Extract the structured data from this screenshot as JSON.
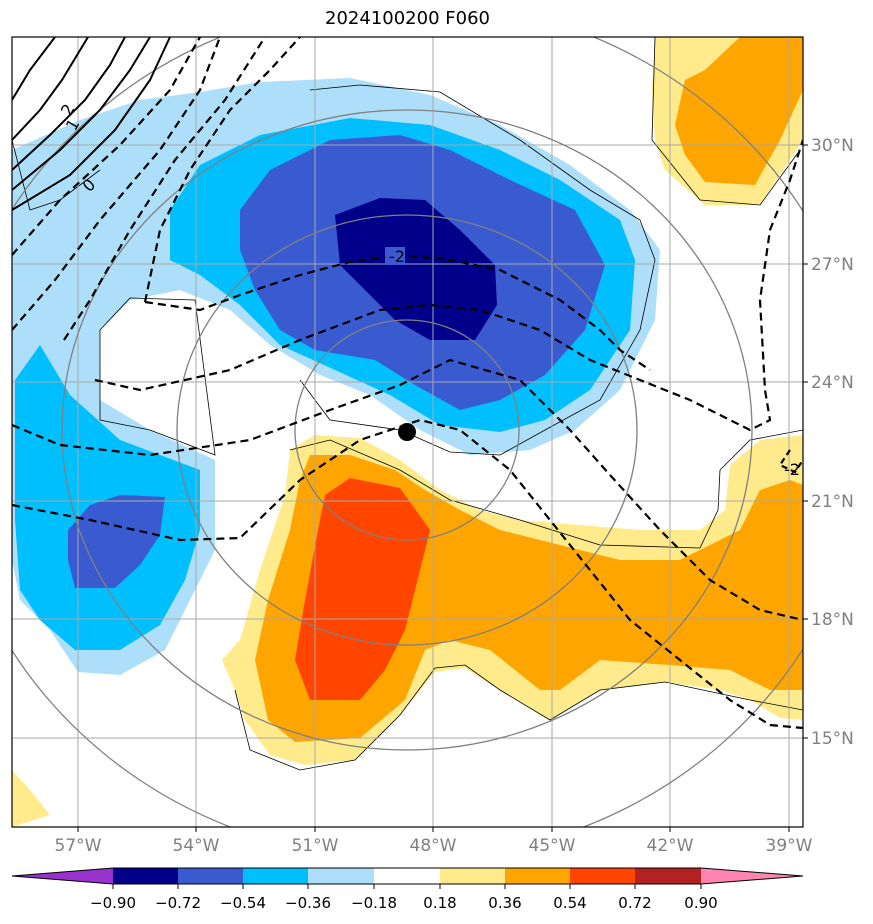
{
  "title": "2024100200 F060",
  "colors": {
    "neg090": "#9932CC",
    "neg072": "#00008B",
    "neg054": "#3A5BD0",
    "neg036": "#00BFFF",
    "neg018": "#ADDFFA",
    "white": "#FFFFFF",
    "pos018": "#FFEA8C",
    "pos036": "#FFA500",
    "pos054": "#FF4500",
    "pos072": "#B22222",
    "pos090": "#FF85B0"
  },
  "lon_labels": [
    "57°W",
    "54°W",
    "51°W",
    "48°W",
    "45°W",
    "42°W",
    "39°W"
  ],
  "lat_labels": [
    "30°N",
    "27°N",
    "24°N",
    "21°N",
    "18°N",
    "15°N"
  ],
  "colorbar": {
    "labels": [
      "−0.90",
      "−0.72",
      "−0.54",
      "−0.36",
      "−0.18",
      "0.18",
      "0.36",
      "0.54",
      "0.72",
      "0.90"
    ]
  },
  "contour_labels": {
    "neg2_center": "-2",
    "neg2_right": "-2",
    "pos2": "2",
    "pos1": "1",
    "zero": "0"
  }
}
